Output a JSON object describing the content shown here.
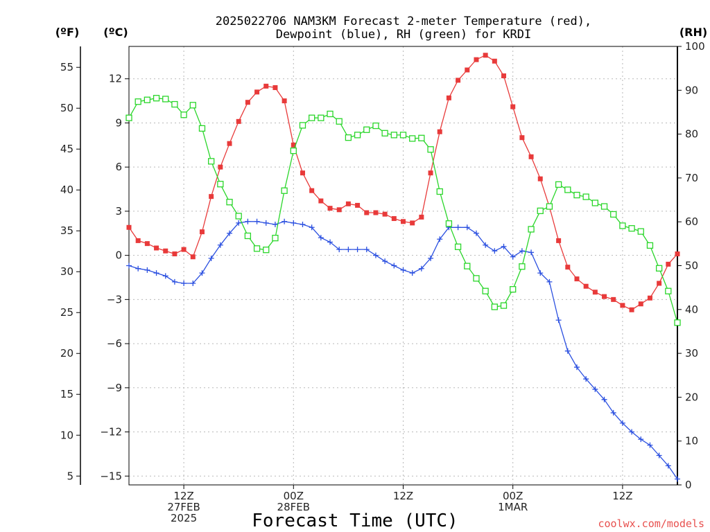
{
  "chart_data": {
    "type": "line",
    "title": "2025022706 NAM3KM Forecast 2-meter Temperature (red),",
    "subtitle": "Dewpoint (blue), RH (green) for KRDI",
    "xlabel": "Forecast Time (UTC)",
    "credit": "coolwx.com/models",
    "units": {
      "fahrenheit": "(ºF)",
      "celsius": "(ºC)",
      "rh": "(RH)"
    },
    "x_start": "2025-02-27T06:00Z",
    "x_step_hours": 1,
    "x_end": "2025-03-01T18:00Z",
    "x_ticks": [
      {
        "time": "2025-02-27T12:00Z",
        "lines": [
          "12Z",
          "27FEB",
          "2025"
        ]
      },
      {
        "time": "2025-02-28T00:00Z",
        "lines": [
          "00Z",
          "28FEB"
        ]
      },
      {
        "time": "2025-02-28T12:00Z",
        "lines": [
          "12Z"
        ]
      },
      {
        "time": "2025-03-01T00:00Z",
        "lines": [
          "00Z",
          "1MAR"
        ]
      },
      {
        "time": "2025-03-01T12:00Z",
        "lines": [
          "12Z"
        ]
      }
    ],
    "left_axis_celsius": {
      "ylim": [
        -15.6,
        14.2
      ],
      "ticks": [
        12,
        9,
        6,
        3,
        0,
        -3,
        -6,
        -9,
        -12,
        -15
      ]
    },
    "left_axis_fahrenheit": {
      "ticks": [
        55,
        50,
        45,
        40,
        35,
        30,
        25,
        20,
        15,
        10,
        5
      ]
    },
    "right_axis_rh": {
      "ylim": [
        0,
        100
      ],
      "ticks": [
        100,
        90,
        80,
        70,
        60,
        50,
        40,
        30,
        20,
        10,
        0
      ]
    },
    "series": [
      {
        "name": "Temperature",
        "color": "#e83a3a",
        "marker": "filled-square",
        "axis": "celsius",
        "values": [
          1.9,
          1.0,
          0.8,
          0.5,
          0.3,
          0.1,
          0.4,
          -0.1,
          1.6,
          4.0,
          6.0,
          7.6,
          9.1,
          10.4,
          11.1,
          11.5,
          11.4,
          10.5,
          7.5,
          5.6,
          4.4,
          3.7,
          3.2,
          3.1,
          3.5,
          3.4,
          2.9,
          2.9,
          2.8,
          2.5,
          2.3,
          2.2,
          2.6,
          5.6,
          8.4,
          10.7,
          11.9,
          12.6,
          13.3,
          13.6,
          13.2,
          12.2,
          10.1,
          8.0,
          6.7,
          5.2,
          3.3,
          1.0,
          -0.8,
          -1.6,
          -2.1,
          -2.5,
          -2.8,
          -3.0,
          -3.4,
          -3.7,
          -3.3,
          -2.9,
          -1.9,
          -0.6,
          0.1
        ]
      },
      {
        "name": "Dewpoint",
        "color": "#2a4fe0",
        "marker": "plus",
        "axis": "celsius",
        "values": [
          -0.7,
          -0.9,
          -1.0,
          -1.2,
          -1.4,
          -1.8,
          -1.9,
          -1.9,
          -1.2,
          -0.2,
          0.7,
          1.5,
          2.2,
          2.3,
          2.3,
          2.2,
          2.1,
          2.3,
          2.2,
          2.1,
          1.9,
          1.2,
          0.9,
          0.4,
          0.4,
          0.4,
          0.4,
          0.0,
          -0.4,
          -0.7,
          -1.0,
          -1.2,
          -0.9,
          -0.2,
          1.1,
          1.9,
          1.9,
          1.9,
          1.5,
          0.7,
          0.3,
          0.6,
          -0.1,
          0.3,
          0.2,
          -1.2,
          -1.8,
          -4.4,
          -6.5,
          -7.6,
          -8.4,
          -9.1,
          -9.8,
          -10.7,
          -11.4,
          -12.0,
          -12.5,
          -12.9,
          -13.6,
          -14.3,
          -15.2
        ]
      },
      {
        "name": "RH",
        "color": "#2ad62a",
        "marker": "open-square",
        "axis": "rh",
        "values": [
          83.7,
          87.4,
          87.8,
          88.2,
          88.0,
          86.8,
          84.4,
          86.6,
          81.3,
          73.8,
          68.6,
          64.5,
          61.3,
          56.8,
          53.9,
          53.6,
          56.3,
          67.1,
          76.2,
          82.0,
          83.7,
          83.7,
          84.6,
          82.9,
          79.2,
          79.8,
          81.0,
          81.9,
          80.2,
          79.8,
          79.8,
          79.0,
          79.1,
          76.5,
          66.9,
          59.6,
          54.3,
          49.9,
          47.1,
          44.2,
          40.6,
          40.9,
          44.6,
          49.8,
          58.3,
          62.5,
          63.5,
          68.5,
          67.3,
          66.1,
          65.7,
          64.3,
          63.5,
          61.7,
          59.1,
          58.5,
          57.8,
          54.6,
          49.4,
          44.2,
          37.0
        ]
      }
    ],
    "grid": true
  }
}
